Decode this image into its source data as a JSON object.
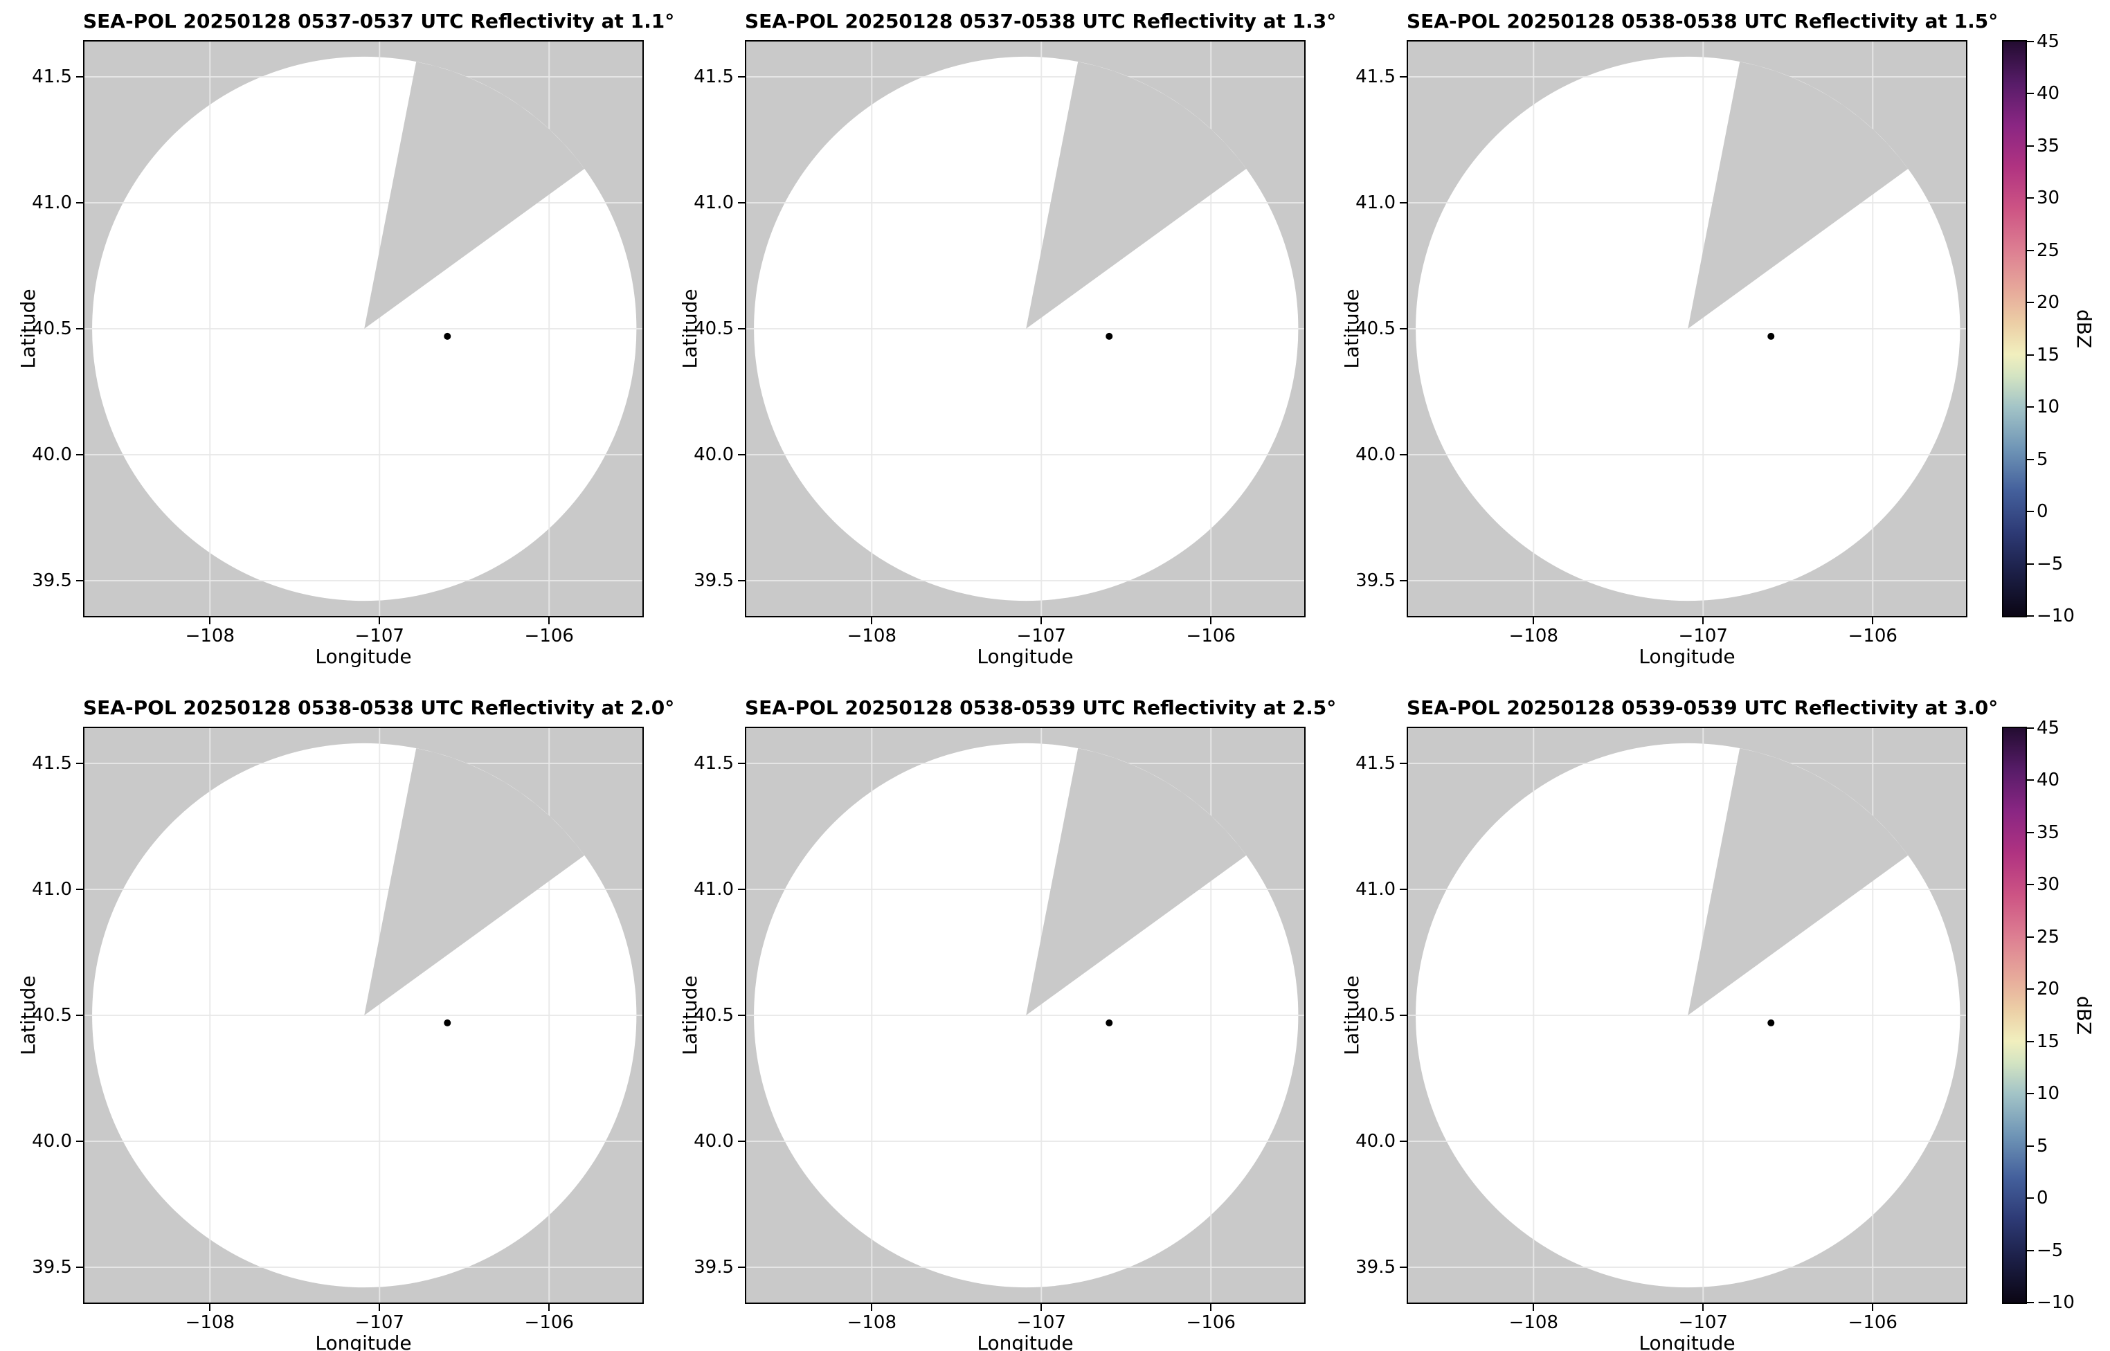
{
  "figure": {
    "panels": [
      {
        "title": "SEA-POL 20250128 0537-0537 UTC Reflectivity at 1.1°"
      },
      {
        "title": "SEA-POL 20250128 0537-0538 UTC Reflectivity at 1.3°"
      },
      {
        "title": "SEA-POL 20250128 0538-0538 UTC Reflectivity at 1.5°"
      },
      {
        "title": "SEA-POL 20250128 0538-0538 UTC Reflectivity at 2.0°"
      },
      {
        "title": "SEA-POL 20250128 0538-0539 UTC Reflectivity at 2.5°"
      },
      {
        "title": "SEA-POL 20250128 0539-0539 UTC Reflectivity at 3.0°"
      }
    ],
    "axes": {
      "xlabel": "Longitude",
      "ylabel": "Latitude",
      "xtick_labels": [
        "−108",
        "−107",
        "−106"
      ],
      "xtick_values": [
        -108,
        -107,
        -106
      ],
      "ytick_labels": [
        "39.5",
        "40.0",
        "40.5",
        "41.0",
        "41.5"
      ],
      "ytick_values": [
        39.5,
        40.0,
        40.5,
        41.0,
        41.5
      ],
      "xlim": [
        -108.74,
        -105.45
      ],
      "ylim": [
        39.36,
        41.64
      ]
    },
    "colorbar": {
      "label": "dBZ",
      "vmin": -10,
      "vmax": 45,
      "tick_values": [
        45,
        40,
        35,
        30,
        25,
        20,
        15,
        10,
        5,
        0,
        -5,
        -10
      ],
      "tick_labels": [
        "45",
        "40",
        "35",
        "30",
        "25",
        "20",
        "15",
        "10",
        "5",
        "0",
        "−5",
        "−10"
      ],
      "stops": [
        {
          "value": -10,
          "color": "#0b0614"
        },
        {
          "value": -6,
          "color": "#1b1e45"
        },
        {
          "value": -2,
          "color": "#2d3a75"
        },
        {
          "value": 2,
          "color": "#44609c"
        },
        {
          "value": 6,
          "color": "#6f95b6"
        },
        {
          "value": 10,
          "color": "#a3c4c7"
        },
        {
          "value": 13,
          "color": "#d4e4c2"
        },
        {
          "value": 15,
          "color": "#f1efbe"
        },
        {
          "value": 18,
          "color": "#eccfa6"
        },
        {
          "value": 21,
          "color": "#e7ab9b"
        },
        {
          "value": 25,
          "color": "#dd7f92"
        },
        {
          "value": 29,
          "color": "#cd5484"
        },
        {
          "value": 33,
          "color": "#b03381"
        },
        {
          "value": 37,
          "color": "#8a2683"
        },
        {
          "value": 41,
          "color": "#571c68"
        },
        {
          "value": 45,
          "color": "#230c31"
        }
      ]
    },
    "map": {
      "background_color": "#c9c9c9",
      "coverage_color": "#ffffff",
      "grid_color": "rgba(232,232,232,0.9)",
      "circle_center": {
        "lon": -107.09,
        "lat": 40.5
      },
      "circle_radius_deg_lat": 1.08,
      "missing_sector_azimuth_start": 11,
      "missing_sector_azimuth_end": 54,
      "marker": {
        "lon": -106.6,
        "lat": 40.47,
        "color": "#000000"
      }
    }
  },
  "chart_data": {
    "type": "heatmap",
    "layout": "2x3 grid of radar PPI reflectivity panels, one shared vertical colorbar per row on the right",
    "subplots": [
      {
        "title": "SEA-POL 20250128 0537-0537 UTC Reflectivity at 1.1°",
        "radar": "SEA-POL",
        "date": "20250128",
        "time_utc": "0537-0537",
        "elevation_deg": 1.1,
        "echoes": "none visible; blank white coverage circle"
      },
      {
        "title": "SEA-POL 20250128 0537-0538 UTC Reflectivity at 1.3°",
        "radar": "SEA-POL",
        "date": "20250128",
        "time_utc": "0537-0538",
        "elevation_deg": 1.3,
        "echoes": "none visible; blank white coverage circle"
      },
      {
        "title": "SEA-POL 20250128 0538-0538 UTC Reflectivity at 1.5°",
        "radar": "SEA-POL",
        "date": "20250128",
        "time_utc": "0538-0538",
        "elevation_deg": 1.5,
        "echoes": "none visible; blank white coverage circle"
      },
      {
        "title": "SEA-POL 20250128 0538-0538 UTC Reflectivity at 2.0°",
        "radar": "SEA-POL",
        "date": "20250128",
        "time_utc": "0538-0538",
        "elevation_deg": 2.0,
        "echoes": "none visible; blank white coverage circle"
      },
      {
        "title": "SEA-POL 20250128 0538-0539 UTC Reflectivity at 2.5°",
        "radar": "SEA-POL",
        "date": "20250128",
        "time_utc": "0538-0539",
        "elevation_deg": 2.5,
        "echoes": "none visible; blank white coverage circle"
      },
      {
        "title": "SEA-POL 20250128 0539-0539 UTC Reflectivity at 3.0°",
        "radar": "SEA-POL",
        "date": "20250128",
        "time_utc": "0539-0539",
        "elevation_deg": 3.0,
        "echoes": "none visible; blank white coverage circle"
      }
    ],
    "xlabel": "Longitude",
    "ylabel": "Latitude",
    "xticks": [
      -108,
      -107,
      -106
    ],
    "yticks": [
      39.5,
      40.0,
      40.5,
      41.0,
      41.5
    ],
    "xlim": [
      -108.74,
      -105.45
    ],
    "ylim": [
      39.36,
      41.64
    ],
    "grid": true,
    "colorbar": {
      "label": "dBZ",
      "min": -10,
      "max": 45,
      "tick_step": 5,
      "legend_position": "right of each row"
    },
    "features": {
      "coverage_circle": {
        "center_lon": -107.09,
        "center_lat": 40.5,
        "radius_deg_lat": 1.08,
        "fill": "white"
      },
      "missing_data_sector": {
        "azimuth_start_deg": 11,
        "azimuth_end_deg": 54,
        "vertex": "circle center",
        "fill": "gray background"
      },
      "radar_marker": {
        "lon": -106.6,
        "lat": 40.47,
        "style": "small black dot"
      }
    }
  }
}
